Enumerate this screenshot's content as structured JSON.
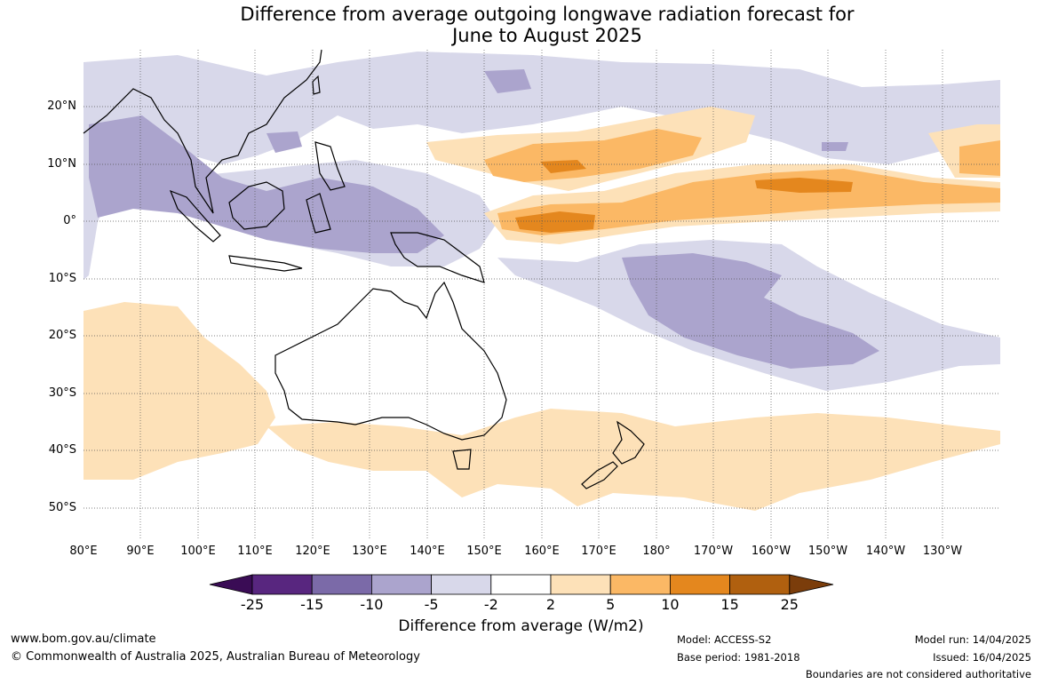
{
  "title_line1": "Difference from average outgoing longwave radiation forecast for",
  "title_line2": "June to August 2025",
  "lat_labels": [
    "20°N",
    "10°N",
    "0°",
    "10°S",
    "20°S",
    "30°S",
    "40°S",
    "50°S"
  ],
  "lon_labels": [
    "80°E",
    "90°E",
    "100°E",
    "110°E",
    "120°E",
    "130°E",
    "140°E",
    "150°E",
    "160°E",
    "170°E",
    "180°",
    "170°W",
    "160°W",
    "150°W",
    "140°W",
    "130°W"
  ],
  "legend": {
    "title": "Difference from average (W/m2)",
    "ticks": [
      "-25",
      "-15",
      "-10",
      "-5",
      "-2",
      "2",
      "5",
      "10",
      "15",
      "25"
    ],
    "colors": [
      "#3a0c55",
      "#58267f",
      "#7b6aa8",
      "#aba4cd",
      "#d8d8ea",
      "#ffffff",
      "#fde1b8",
      "#fbb865",
      "#e4871e",
      "#b0600f",
      "#7b3d0b"
    ]
  },
  "footer": {
    "url": "www.bom.gov.au/climate",
    "copyright": "© Commonwealth of Australia 2025, Australian Bureau of Meteorology",
    "model": "Model: ACCESS-S2",
    "base_period": "Base period: 1981-2018",
    "model_run": "Model run: 14/04/2025",
    "issued": "Issued: 16/04/2025",
    "disclaimer": "Boundaries are not considered authoritative"
  }
}
